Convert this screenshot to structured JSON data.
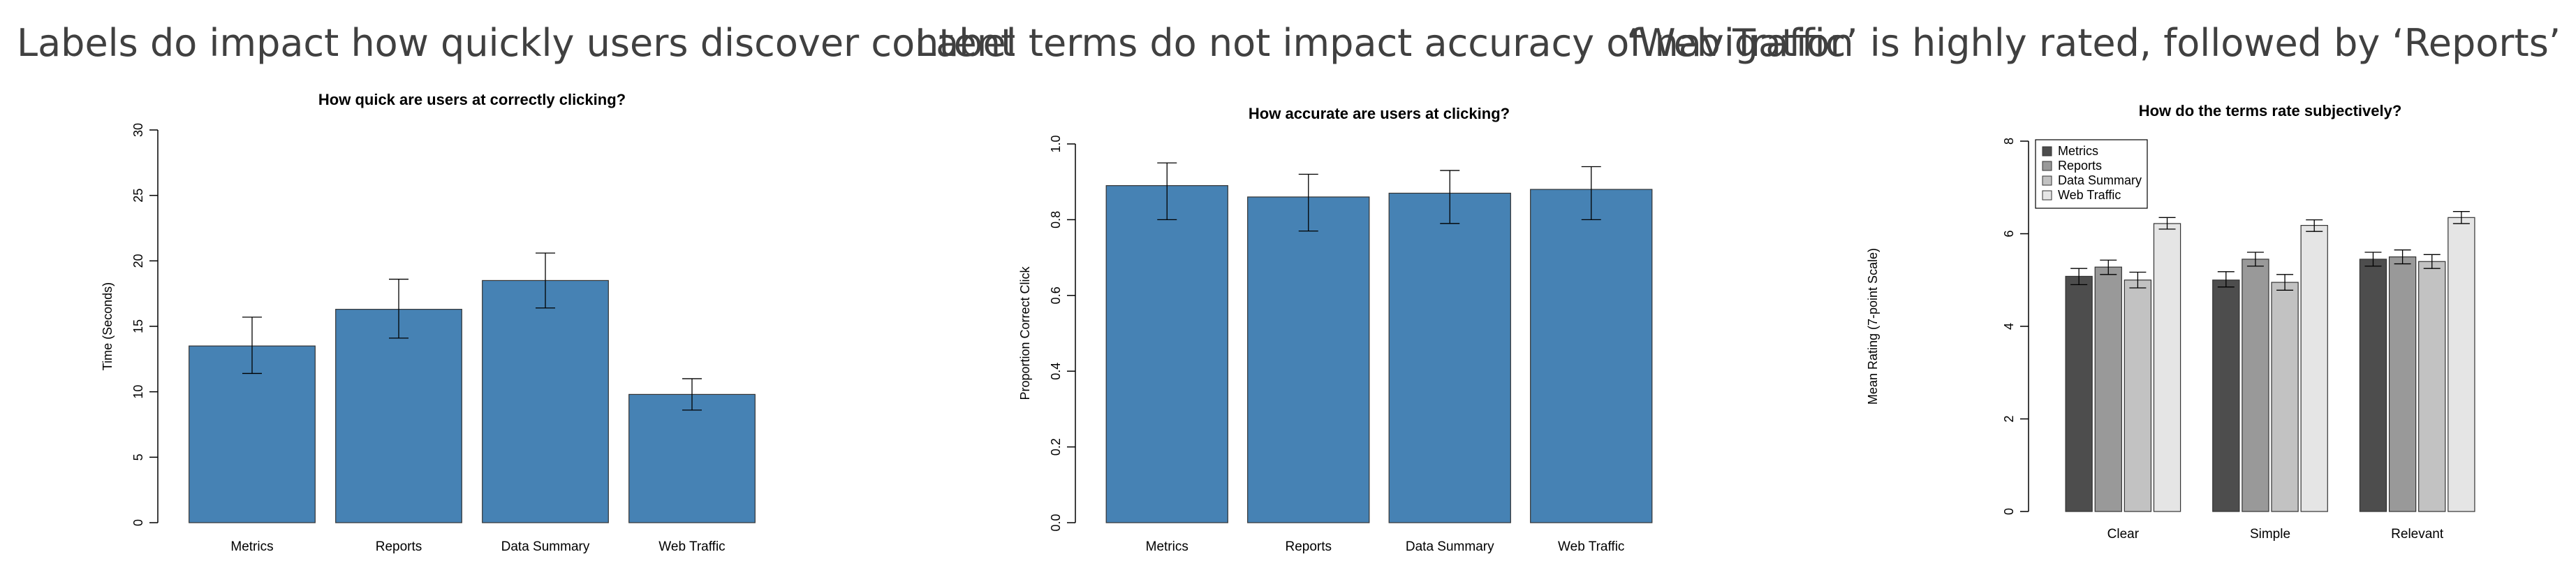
{
  "colors": {
    "bar": "#4682B4",
    "headline": "#404040"
  },
  "chart_data": [
    {
      "type": "bar",
      "headline": "Labels do impact how quickly users discover content",
      "title": "How quick are users at correctly clicking?",
      "xlabel": "",
      "ylabel": "Time (Seconds)",
      "categories": [
        "Metrics",
        "Reports",
        "Data Summary",
        "Web Traffic"
      ],
      "values": [
        13.5,
        16.3,
        18.5,
        9.8
      ],
      "error_low": [
        11.4,
        14.1,
        16.4,
        8.6
      ],
      "error_high": [
        15.7,
        18.6,
        20.6,
        11.0
      ],
      "ylim": [
        0,
        30
      ],
      "yticks": [
        "0",
        "5",
        "10",
        "15",
        "20",
        "25",
        "30"
      ],
      "grid": false
    },
    {
      "type": "bar",
      "headline": "Label terms do not impact accuracy of navigation",
      "title": "How accurate are users at clicking?",
      "xlabel": "",
      "ylabel": "Proportion Correct Click",
      "categories": [
        "Metrics",
        "Reports",
        "Data Summary",
        "Web Traffic"
      ],
      "values": [
        0.89,
        0.86,
        0.87,
        0.88
      ],
      "error_low": [
        0.8,
        0.77,
        0.79,
        0.8
      ],
      "error_high": [
        0.95,
        0.92,
        0.93,
        0.94
      ],
      "ylim": [
        0,
        1
      ],
      "yticks": [
        "0.0",
        "0.2",
        "0.4",
        "0.6",
        "0.8",
        "1.0"
      ],
      "grid": false
    },
    {
      "type": "bar",
      "headline": "‘Web Traffic’ is highly rated, followed by ‘Reports’",
      "title": "How do the terms rate subjectively?",
      "xlabel": "",
      "ylabel": "Mean Rating (7-point Scale)",
      "categories": [
        "Clear",
        "Simple",
        "Relevant"
      ],
      "legend_position": "top-left",
      "ylim": [
        0,
        8
      ],
      "yticks": [
        "0",
        "2",
        "4",
        "6",
        "8"
      ],
      "grid": false,
      "series": [
        {
          "name": "Metrics",
          "color": "#4D4D4D",
          "values": [
            5.08,
            5.0,
            5.45
          ],
          "error_low": [
            4.9,
            4.85,
            5.3
          ],
          "error_high": [
            5.25,
            5.18,
            5.6
          ]
        },
        {
          "name": "Reports",
          "color": "#999999",
          "values": [
            5.28,
            5.45,
            5.5
          ],
          "error_low": [
            5.12,
            5.3,
            5.35
          ],
          "error_high": [
            5.43,
            5.6,
            5.65
          ]
        },
        {
          "name": "Data Summary",
          "color": "#C2C2C2",
          "values": [
            5.0,
            4.95,
            5.4
          ],
          "error_low": [
            4.83,
            4.78,
            5.25
          ],
          "error_high": [
            5.17,
            5.12,
            5.55
          ]
        },
        {
          "name": "Web Traffic",
          "color": "#E5E5E5",
          "values": [
            6.22,
            6.18,
            6.35
          ],
          "error_low": [
            6.1,
            6.05,
            6.22
          ],
          "error_high": [
            6.35,
            6.3,
            6.48
          ]
        }
      ]
    }
  ]
}
